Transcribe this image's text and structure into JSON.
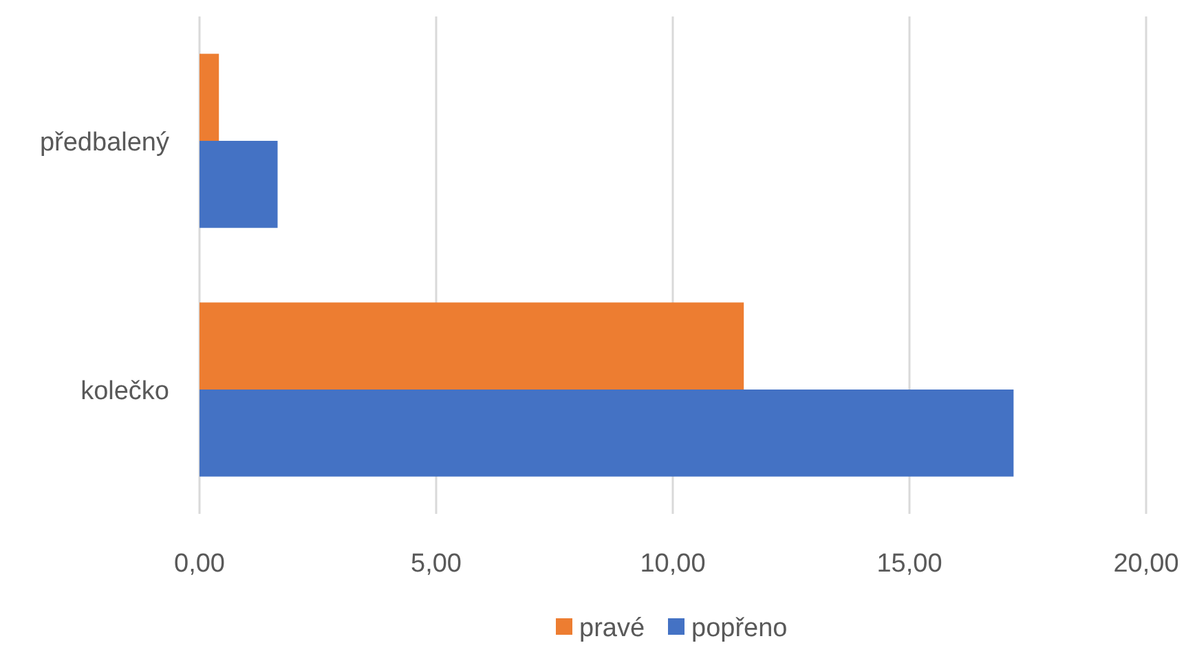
{
  "chart_data": {
    "type": "bar",
    "orientation": "horizontal",
    "categories": [
      "předbalený",
      "kolečko"
    ],
    "series": [
      {
        "name": "pravé",
        "color": "#ed7d31",
        "values": [
          0.41,
          11.5
        ]
      },
      {
        "name": "popřeno",
        "color": "#4472c4",
        "values": [
          1.65,
          17.2
        ]
      }
    ],
    "xlim": [
      0,
      20
    ],
    "xticks": [
      {
        "value": 0,
        "label": "0,00"
      },
      {
        "value": 5,
        "label": "5,00"
      },
      {
        "value": 10,
        "label": "10,00"
      },
      {
        "value": 15,
        "label": "15,00"
      },
      {
        "value": 20,
        "label": "20,00"
      }
    ],
    "grid": "x",
    "legend": "bottom"
  }
}
